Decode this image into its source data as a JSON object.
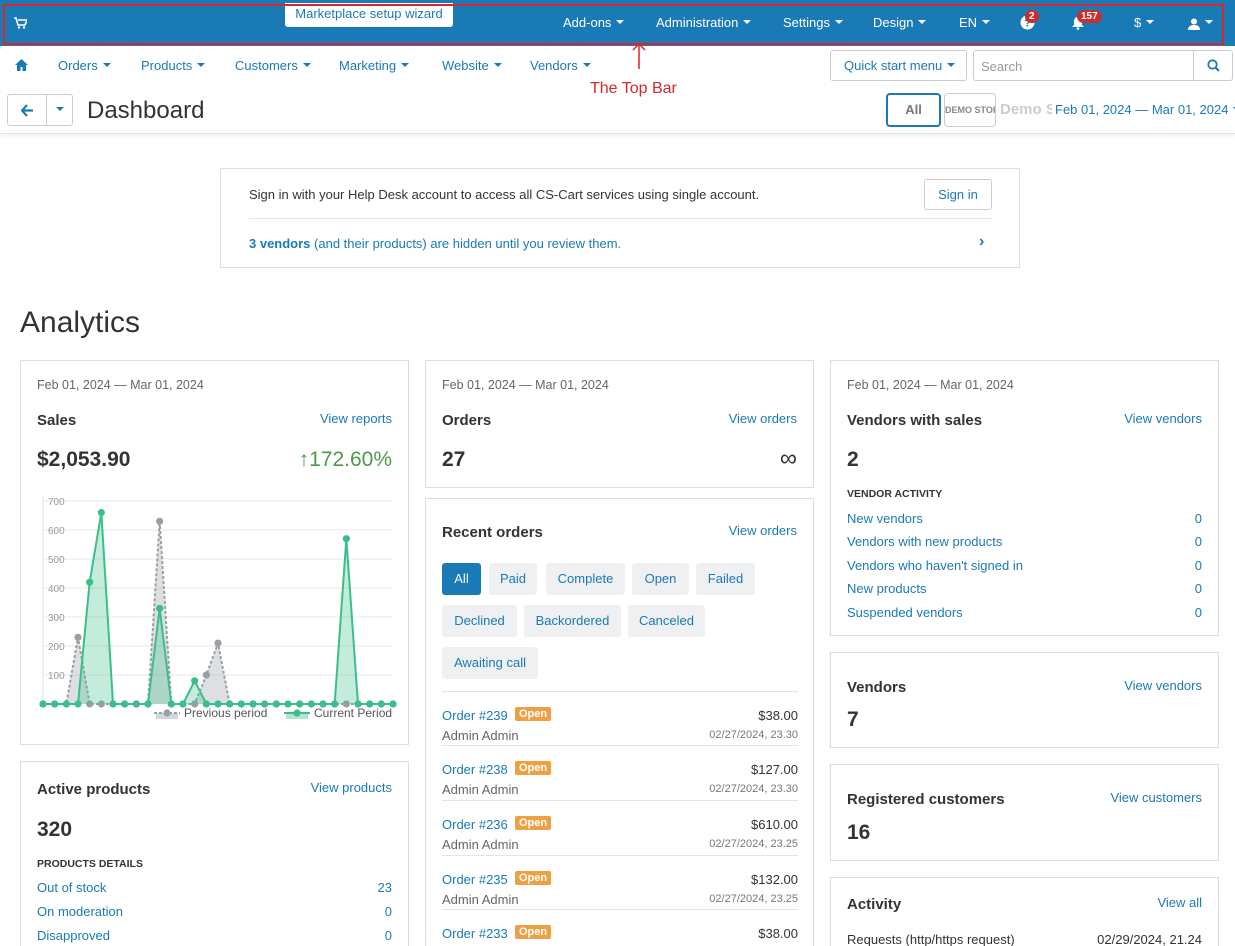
{
  "topbar": {
    "wizard": "Marketplace setup wizard",
    "menus": [
      "Add-ons",
      "Administration",
      "Settings",
      "Design",
      "EN"
    ],
    "help_badge": "2",
    "notif_badge": "157",
    "currency": "$"
  },
  "annotation": "The Top Bar",
  "navbar": {
    "items": [
      "Orders",
      "Products",
      "Customers",
      "Marketing",
      "Website",
      "Vendors"
    ],
    "quick_start": "Quick start menu",
    "search_placeholder": "Search"
  },
  "subheader": {
    "title": "Dashboard",
    "all": "All",
    "store1": "DEMO STORE",
    "store2": "Demo Sto",
    "date_range": "Feb 01, 2024 — Mar 01, 2024"
  },
  "notice": {
    "text": "Sign in with your Help Desk account to access all CS-Cart services using single account.",
    "signin": "Sign in",
    "vendors_bold": "3 vendors",
    "vendors_rest": " (and their products) are hidden until you review them."
  },
  "analytics_title": "Analytics",
  "sales": {
    "date": "Feb 01, 2024 — Mar 01, 2024",
    "title": "Sales",
    "link": "View reports",
    "value": "$2,053.90",
    "change": "↑172.60%",
    "legend_prev": "Previous period",
    "legend_curr": "Current Period"
  },
  "chart_data": {
    "type": "area",
    "yticks": [
      "700",
      "600",
      "500",
      "400",
      "300",
      "200",
      "100"
    ],
    "ylim": [
      0,
      700
    ],
    "x": [
      1,
      2,
      3,
      4,
      5,
      6,
      7,
      8,
      9,
      10,
      11,
      12,
      13,
      14,
      15,
      16,
      17,
      18,
      19,
      20,
      21,
      22,
      23,
      24,
      25,
      26,
      27,
      28,
      29,
      30,
      31
    ],
    "series": [
      {
        "name": "Previous period",
        "color": "#9a9ea6",
        "values": [
          0,
          0,
          0,
          230,
          0,
          0,
          0,
          0,
          0,
          0,
          630,
          0,
          0,
          0,
          100,
          210,
          0,
          0,
          0,
          0,
          0,
          0,
          0,
          0,
          0,
          0,
          0,
          0,
          0,
          0,
          0
        ]
      },
      {
        "name": "Current Period",
        "color": "#3bbf8a",
        "values": [
          0,
          0,
          0,
          0,
          420,
          660,
          0,
          0,
          0,
          0,
          330,
          0,
          0,
          80,
          0,
          0,
          0,
          0,
          0,
          0,
          0,
          0,
          0,
          0,
          0,
          0,
          570,
          0,
          0,
          0,
          0
        ]
      }
    ]
  },
  "orders": {
    "date": "Feb 01, 2024 — Mar 01, 2024",
    "title": "Orders",
    "link": "View orders",
    "value": "27",
    "inf": "∞"
  },
  "recent": {
    "title": "Recent orders",
    "link": "View orders",
    "filters": [
      "All",
      "Paid",
      "Complete",
      "Open",
      "Failed",
      "Declined",
      "Backordered",
      "Canceled",
      "Awaiting call"
    ],
    "list": [
      {
        "num": "Order #239",
        "status": "Open",
        "who": "Admin Admin",
        "amount": "$38.00",
        "date": "02/27/2024, 23.30"
      },
      {
        "num": "Order #238",
        "status": "Open",
        "who": "Admin Admin",
        "amount": "$127.00",
        "date": "02/27/2024, 23.30"
      },
      {
        "num": "Order #236",
        "status": "Open",
        "who": "Admin Admin",
        "amount": "$610.00",
        "date": "02/27/2024, 23.25"
      },
      {
        "num": "Order #235",
        "status": "Open",
        "who": "Admin Admin",
        "amount": "$132.00",
        "date": "02/27/2024, 23.25"
      },
      {
        "num": "Order #233",
        "status": "Open",
        "who": "",
        "amount": "$38.00",
        "date": ""
      }
    ]
  },
  "vendors_sales": {
    "date": "Feb 01, 2024 — Mar 01, 2024",
    "title": "Vendors with sales",
    "link": "View vendors",
    "value": "2",
    "sub": "VENDOR ACTIVITY",
    "rows": [
      {
        "label": "New vendors",
        "val": "0"
      },
      {
        "label": "Vendors with new products",
        "val": "0"
      },
      {
        "label": "Vendors who haven't signed in",
        "val": "0"
      },
      {
        "label": "New products",
        "val": "0"
      },
      {
        "label": "Suspended vendors",
        "val": "0"
      }
    ]
  },
  "vendors": {
    "title": "Vendors",
    "link": "View vendors",
    "value": "7"
  },
  "customers": {
    "title": "Registered customers",
    "link": "View customers",
    "value": "16"
  },
  "activity": {
    "title": "Activity",
    "link": "View all",
    "row_label": "Requests (http/https request)",
    "row_date": "02/29/2024, 21.24"
  },
  "products": {
    "title": "Active products",
    "link": "View products",
    "value": "320",
    "sub": "PRODUCTS DETAILS",
    "rows": [
      {
        "label": "Out of stock",
        "val": "23"
      },
      {
        "label": "On moderation",
        "val": "0"
      },
      {
        "label": "Disapproved",
        "val": "0"
      }
    ]
  }
}
